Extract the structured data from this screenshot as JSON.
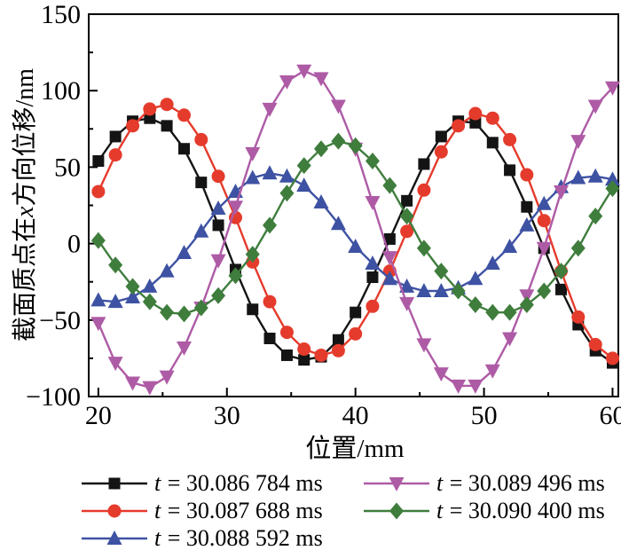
{
  "figure": {
    "background": "#ffffff",
    "frame_color": "#000000"
  },
  "axes": {
    "xlabel": "位置/mm",
    "ylabel_prefix": "截面质点在",
    "ylabel_var": "x",
    "ylabel_suffix": "方向位移/nm"
  },
  "chart_data": {
    "type": "line",
    "title": "",
    "xlabel": "位置/mm",
    "ylabel": "截面质点在x方向位移/nm",
    "xlim": [
      20,
      60
    ],
    "x_axis_padding": [
      0.75,
      0.45
    ],
    "ylim": [
      -100,
      150
    ],
    "xticks_major": [
      20,
      30,
      40,
      50,
      60
    ],
    "xticks_minor": [
      25,
      35,
      45,
      55
    ],
    "yticks_major": [
      -100,
      -50,
      0,
      50,
      100,
      150
    ],
    "yticks_minor": [
      -75,
      -25,
      25,
      75,
      125
    ],
    "grid": false,
    "legend_position": "bottom",
    "x": [
      20,
      21.33,
      22.67,
      24,
      25.33,
      26.67,
      28,
      29.33,
      30.67,
      32,
      33.33,
      34.67,
      36,
      37.33,
      38.67,
      40,
      41.33,
      42.67,
      44,
      45.33,
      46.67,
      48,
      49.33,
      50.67,
      52,
      53.33,
      54.67,
      56,
      57.33,
      58.67,
      60
    ],
    "series": [
      {
        "name": "t = 30.086 784 ms",
        "marker": "square",
        "color": "#141414",
        "values": [
          54,
          70,
          80,
          82,
          77,
          62,
          40,
          12,
          -17,
          -43,
          -62,
          -73,
          -76,
          -74,
          -63,
          -45,
          -22,
          3,
          28,
          52,
          70,
          80,
          79,
          66,
          48,
          24,
          -3,
          -30,
          -53,
          -70,
          -78
        ]
      },
      {
        "name": "t = 30.087 688 ms",
        "marker": "circle",
        "color": "#e53b2c",
        "values": [
          34,
          58,
          77,
          88,
          91,
          84,
          68,
          44,
          17,
          -12,
          -38,
          -58,
          -69,
          -73,
          -70,
          -59,
          -41,
          -18,
          8,
          35,
          60,
          77,
          85,
          82,
          68,
          45,
          15,
          -18,
          -48,
          -66,
          -75
        ]
      },
      {
        "name": "t = 30.088 592 ms",
        "marker": "triangle-up",
        "color": "#3e52a3",
        "values": [
          -37,
          -38,
          -35,
          -28,
          -18,
          -6,
          8,
          23,
          34,
          43,
          46,
          44,
          38,
          27,
          13,
          -2,
          -13,
          -23,
          -28,
          -31,
          -31,
          -29,
          -23,
          -13,
          -2,
          12,
          26,
          37,
          43,
          44,
          42
        ]
      },
      {
        "name": "t = 30.089 496 ms",
        "marker": "triangle-down",
        "color": "#ae5ba6",
        "values": [
          -52,
          -78,
          -91,
          -94,
          -87,
          -68,
          -42,
          -11,
          24,
          59,
          88,
          106,
          113,
          108,
          90,
          62,
          27,
          -9,
          -39,
          -66,
          -85,
          -93,
          -93,
          -83,
          -62,
          -34,
          -3,
          34,
          67,
          90,
          102
        ]
      },
      {
        "name": "t = 30.090 400 ms",
        "marker": "diamond",
        "color": "#3f7d3d",
        "values": [
          2,
          -14,
          -28,
          -38,
          -45,
          -46,
          -42,
          -34,
          -21,
          -7,
          12,
          33,
          51,
          62,
          67,
          64,
          54,
          38,
          18,
          -3,
          -18,
          -31,
          -40,
          -45,
          -45,
          -40,
          -31,
          -18,
          -3,
          18,
          36
        ]
      }
    ]
  }
}
